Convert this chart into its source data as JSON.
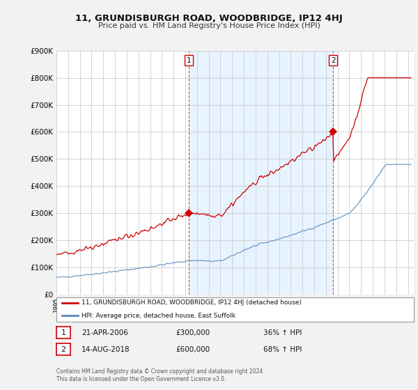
{
  "title": "11, GRUNDISBURGH ROAD, WOODBRIDGE, IP12 4HJ",
  "subtitle": "Price paid vs. HM Land Registry's House Price Index (HPI)",
  "ylim": [
    0,
    900000
  ],
  "xlim_start": 1995.0,
  "xlim_end": 2025.5,
  "sale1_year": 2006.31,
  "sale1_price": 300000,
  "sale1_label": "1",
  "sale1_date": "21-APR-2006",
  "sale1_hpi": "36% ↑ HPI",
  "sale2_year": 2018.62,
  "sale2_price": 600000,
  "sale2_label": "2",
  "sale2_date": "14-AUG-2018",
  "sale2_hpi": "68% ↑ HPI",
  "property_color": "#cc0000",
  "hpi_color": "#5588bb",
  "shade_color": "#ddeeff",
  "legend_property": "11, GRUNDISBURGH ROAD, WOODBRIDGE, IP12 4HJ (detached house)",
  "legend_hpi": "HPI: Average price, detached house, East Suffolk",
  "footnote": "Contains HM Land Registry data © Crown copyright and database right 2024.\nThis data is licensed under the Open Government Licence v3.0.",
  "background_color": "#f2f2f2",
  "plot_background": "#ffffff"
}
